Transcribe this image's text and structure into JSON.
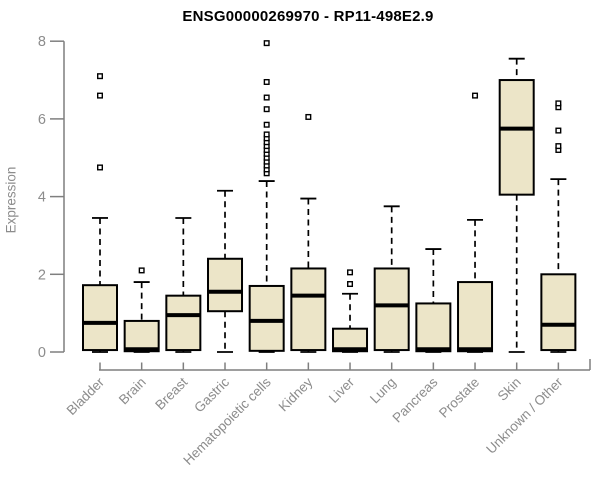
{
  "chart_data": {
    "type": "boxplot",
    "title": "ENSG00000269970 - RP11-498E2.9",
    "ylabel": "Expression",
    "xlabel": "",
    "ylim": [
      0,
      8
    ],
    "yticks": [
      "0",
      "2",
      "4",
      "6",
      "8"
    ],
    "grid": false,
    "legend": "none",
    "colors": {
      "box_fill": "#ECE5C8",
      "box_border": "#000000",
      "median": "#000000",
      "whisker": "#000000",
      "axis_line": "#7f7f7f",
      "axis_text": "#8c8c8c",
      "title_text": "#000000",
      "background": "#ffffff"
    },
    "categories": [
      "Bladder",
      "Brain",
      "Breast",
      "Gastric",
      "Hematopoietic cells",
      "Kidney",
      "Liver",
      "Lung",
      "Pancreas",
      "Prostate",
      "Skin",
      "Unknown / Other"
    ],
    "series": [
      {
        "name": "Bladder",
        "whisker_low": 0,
        "q1": 0.05,
        "median": 0.75,
        "q3": 1.72,
        "whisker_high": 3.45,
        "outliers": [
          4.75,
          6.6,
          7.1
        ]
      },
      {
        "name": "Brain",
        "whisker_low": 0,
        "q1": 0.02,
        "median": 0.07,
        "q3": 0.8,
        "whisker_high": 1.8,
        "outliers": [
          2.1
        ]
      },
      {
        "name": "Breast",
        "whisker_low": 0,
        "q1": 0.05,
        "median": 0.95,
        "q3": 1.45,
        "whisker_high": 3.45,
        "outliers": []
      },
      {
        "name": "Gastric",
        "whisker_low": 0,
        "q1": 1.05,
        "median": 1.55,
        "q3": 2.4,
        "whisker_high": 4.15,
        "outliers": []
      },
      {
        "name": "Hematopoietic cells",
        "whisker_low": 0,
        "q1": 0.03,
        "median": 0.8,
        "q3": 1.7,
        "whisker_high": 4.4,
        "outliers": [
          4.6,
          4.7,
          4.8,
          4.9,
          5.0,
          5.1,
          5.2,
          5.3,
          5.4,
          5.5,
          5.6,
          5.85,
          6.25,
          6.55,
          6.95,
          7.95
        ]
      },
      {
        "name": "Kidney",
        "whisker_low": 0,
        "q1": 0.05,
        "median": 1.45,
        "q3": 2.15,
        "whisker_high": 3.95,
        "outliers": [
          6.05
        ]
      },
      {
        "name": "Liver",
        "whisker_low": 0,
        "q1": 0.02,
        "median": 0.07,
        "q3": 0.6,
        "whisker_high": 1.5,
        "outliers": [
          1.75,
          2.05
        ]
      },
      {
        "name": "Lung",
        "whisker_low": 0,
        "q1": 0.05,
        "median": 1.2,
        "q3": 2.15,
        "whisker_high": 3.75,
        "outliers": []
      },
      {
        "name": "Pancreas",
        "whisker_low": 0,
        "q1": 0.02,
        "median": 0.07,
        "q3": 1.25,
        "whisker_high": 2.65,
        "outliers": []
      },
      {
        "name": "Prostate",
        "whisker_low": 0,
        "q1": 0.02,
        "median": 0.07,
        "q3": 1.8,
        "whisker_high": 3.4,
        "outliers": [
          6.6
        ]
      },
      {
        "name": "Skin",
        "whisker_low": 0,
        "q1": 4.05,
        "median": 5.75,
        "q3": 7.0,
        "whisker_high": 7.55,
        "outliers": []
      },
      {
        "name": "Unknown / Other",
        "whisker_low": 0,
        "q1": 0.05,
        "median": 0.7,
        "q3": 2.0,
        "whisker_high": 4.45,
        "outliers": [
          5.2,
          5.3,
          5.7,
          6.3,
          6.4
        ]
      }
    ]
  }
}
